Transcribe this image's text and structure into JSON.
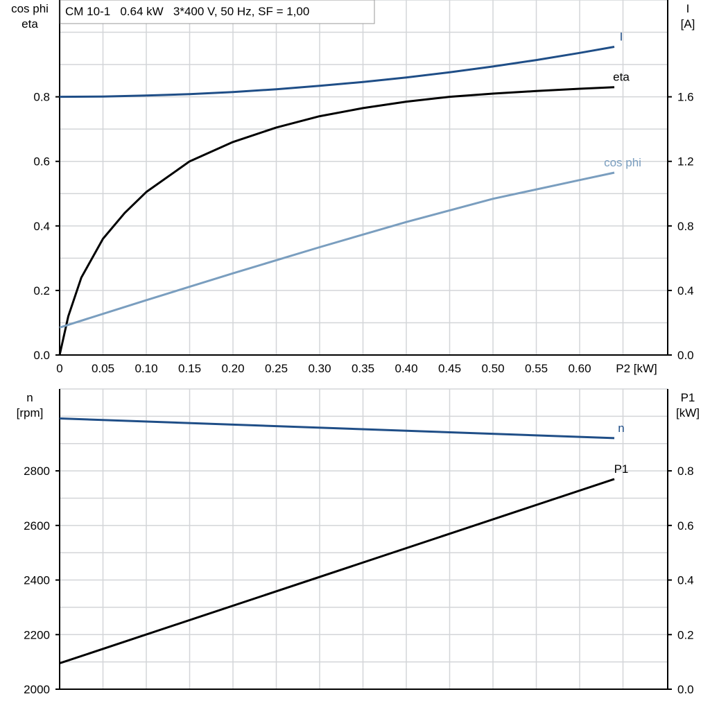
{
  "title_box": "CM 10-1   0.64 kW   3*400 V, 50 Hz, SF = 1,00",
  "chart_data": [
    {
      "type": "line",
      "left_axis_label": [
        "cos phi",
        "eta"
      ],
      "right_axis_label": [
        "I",
        "[A]"
      ],
      "xlabel": "P2 [kW]",
      "xlim": [
        0,
        0.7
      ],
      "ylim_left": [
        0,
        1.1
      ],
      "ylim_right": [
        0,
        2.2
      ],
      "x_ticks": [
        "0",
        "0.05",
        "0.10",
        "0.15",
        "0.20",
        "0.25",
        "0.30",
        "0.35",
        "0.40",
        "0.45",
        "0.50",
        "0.55",
        "0.60"
      ],
      "y_left_ticks": [
        "0.0",
        "0.2",
        "0.4",
        "0.6",
        "0.8"
      ],
      "y_right_ticks": [
        "0.0",
        "0.4",
        "0.8",
        "1.2",
        "1.6"
      ],
      "grid": true,
      "series": [
        {
          "name": "I",
          "axis": "right",
          "color": "#1f4e87",
          "x": [
            0,
            0.05,
            0.1,
            0.15,
            0.2,
            0.25,
            0.3,
            0.35,
            0.4,
            0.45,
            0.5,
            0.55,
            0.6,
            0.64
          ],
          "y": [
            1.6,
            1.602,
            1.608,
            1.617,
            1.63,
            1.647,
            1.668,
            1.692,
            1.72,
            1.752,
            1.788,
            1.828,
            1.872,
            1.91
          ]
        },
        {
          "name": "eta",
          "axis": "left",
          "color": "#000000",
          "x": [
            0,
            0.01,
            0.025,
            0.05,
            0.075,
            0.1,
            0.15,
            0.2,
            0.25,
            0.3,
            0.35,
            0.4,
            0.45,
            0.5,
            0.55,
            0.6,
            0.64
          ],
          "y": [
            0,
            0.12,
            0.24,
            0.36,
            0.44,
            0.505,
            0.6,
            0.66,
            0.705,
            0.74,
            0.765,
            0.785,
            0.8,
            0.81,
            0.818,
            0.825,
            0.83
          ]
        },
        {
          "name": "cos phi",
          "axis": "left",
          "color": "#7a9ebf",
          "x": [
            0,
            0.1,
            0.2,
            0.3,
            0.4,
            0.5,
            0.6,
            0.64
          ],
          "y": [
            0.085,
            0.17,
            0.253,
            0.334,
            0.412,
            0.484,
            0.542,
            0.565
          ]
        }
      ]
    },
    {
      "type": "line",
      "left_axis_label": [
        "n",
        "[rpm]"
      ],
      "right_axis_label": [
        "P1",
        "[kW]"
      ],
      "xlim": [
        0,
        0.7
      ],
      "ylim_left": [
        2000,
        3100
      ],
      "ylim_right": [
        0,
        1.1
      ],
      "y_left_ticks": [
        "2000",
        "2200",
        "2400",
        "2600",
        "2800"
      ],
      "y_right_ticks": [
        "0.0",
        "0.2",
        "0.4",
        "0.6",
        "0.8"
      ],
      "grid": true,
      "series": [
        {
          "name": "n",
          "axis": "left",
          "color": "#1f4e87",
          "x": [
            0,
            0.64
          ],
          "y": [
            2992,
            2920
          ]
        },
        {
          "name": "P1",
          "axis": "right",
          "color": "#000000",
          "x": [
            0,
            0.64
          ],
          "y": [
            0.095,
            0.77
          ]
        }
      ]
    }
  ]
}
